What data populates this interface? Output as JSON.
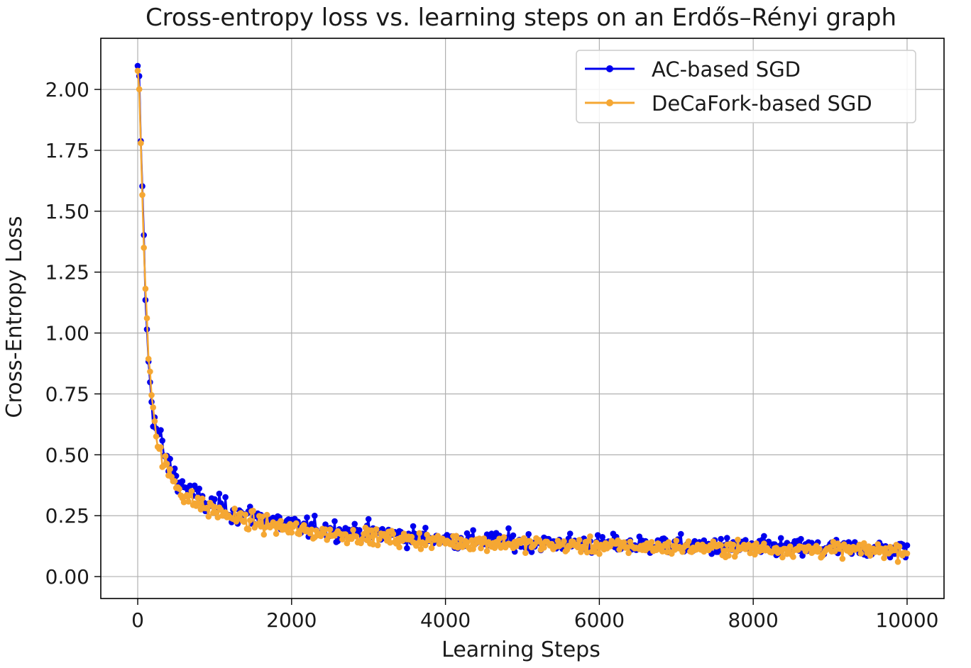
{
  "chart_data": {
    "type": "line",
    "title": "Cross-entropy loss vs. learning steps on an Erdős–Rényi graph",
    "xlabel": "Learning Steps",
    "ylabel": "Cross-Entropy Loss",
    "xlim": [
      -480,
      10480
    ],
    "ylim": [
      -0.09,
      2.21
    ],
    "xticks": [
      0,
      2000,
      4000,
      6000,
      8000,
      10000
    ],
    "xtick_labels": [
      "0",
      "2000",
      "4000",
      "6000",
      "8000",
      "10000"
    ],
    "yticks": [
      0.0,
      0.25,
      0.5,
      0.75,
      1.0,
      1.25,
      1.5,
      1.75,
      2.0
    ],
    "ytick_labels": [
      "0.00",
      "0.25",
      "0.50",
      "0.75",
      "1.00",
      "1.25",
      "1.50",
      "1.75",
      "2.00"
    ],
    "grid": true,
    "legend_position": "top-right",
    "markers": "dots",
    "sampling_step": 20,
    "series": [
      {
        "name": "AC-based SGD",
        "color": "#0000ee",
        "x": [
          0,
          20,
          40,
          60,
          80,
          100,
          120,
          140,
          160,
          180,
          200,
          250,
          300,
          350,
          400,
          450,
          500,
          600,
          700,
          800,
          900,
          1000,
          1100,
          1200,
          1300,
          1400,
          1500,
          1600,
          1800,
          2000,
          2200,
          2400,
          2600,
          2800,
          3000,
          3200,
          3400,
          3600,
          3800,
          4000,
          4200,
          4400,
          4600,
          4800,
          5000,
          5200,
          5400,
          5600,
          5800,
          6000,
          6200,
          6400,
          6600,
          6800,
          7000,
          7200,
          7400,
          7600,
          7800,
          8000,
          8200,
          8400,
          8600,
          8800,
          9000,
          9200,
          9400,
          9600,
          9800,
          10000
        ],
        "values": [
          2.09,
          2.05,
          1.79,
          1.6,
          1.4,
          1.14,
          1.01,
          0.88,
          0.8,
          0.72,
          0.67,
          0.6,
          0.56,
          0.5,
          0.45,
          0.43,
          0.41,
          0.37,
          0.34,
          0.32,
          0.3,
          0.29,
          0.28,
          0.27,
          0.26,
          0.25,
          0.245,
          0.24,
          0.225,
          0.21,
          0.2,
          0.195,
          0.19,
          0.185,
          0.18,
          0.175,
          0.17,
          0.165,
          0.16,
          0.155,
          0.152,
          0.15,
          0.148,
          0.145,
          0.143,
          0.14,
          0.138,
          0.136,
          0.135,
          0.133,
          0.132,
          0.13,
          0.129,
          0.128,
          0.127,
          0.126,
          0.125,
          0.124,
          0.123,
          0.122,
          0.121,
          0.12,
          0.119,
          0.118,
          0.117,
          0.116,
          0.115,
          0.115,
          0.114,
          0.114
        ],
        "noise": 0.055
      },
      {
        "name": "DeCaFork-based SGD",
        "color": "#f5a733",
        "x": [
          0,
          20,
          40,
          60,
          80,
          100,
          120,
          140,
          160,
          180,
          200,
          250,
          300,
          350,
          400,
          450,
          500,
          600,
          700,
          800,
          900,
          1000,
          1100,
          1200,
          1300,
          1400,
          1500,
          1600,
          1800,
          2000,
          2200,
          2400,
          2600,
          2800,
          3000,
          3200,
          3400,
          3600,
          3800,
          4000,
          4200,
          4400,
          4600,
          4800,
          5000,
          5200,
          5400,
          5600,
          5800,
          6000,
          6200,
          6400,
          6600,
          6800,
          7000,
          7200,
          7400,
          7600,
          7800,
          8000,
          8200,
          8400,
          8600,
          8800,
          9000,
          9200,
          9400,
          9600,
          9800,
          10000
        ],
        "values": [
          2.08,
          2.0,
          1.78,
          1.56,
          1.35,
          1.18,
          1.07,
          0.89,
          0.85,
          0.75,
          0.72,
          0.55,
          0.5,
          0.46,
          0.43,
          0.4,
          0.38,
          0.34,
          0.31,
          0.3,
          0.28,
          0.27,
          0.26,
          0.25,
          0.24,
          0.23,
          0.225,
          0.22,
          0.205,
          0.195,
          0.185,
          0.18,
          0.175,
          0.17,
          0.165,
          0.16,
          0.155,
          0.15,
          0.147,
          0.144,
          0.142,
          0.14,
          0.138,
          0.136,
          0.134,
          0.132,
          0.13,
          0.128,
          0.126,
          0.125,
          0.124,
          0.123,
          0.122,
          0.121,
          0.12,
          0.119,
          0.118,
          0.117,
          0.116,
          0.115,
          0.114,
          0.113,
          0.112,
          0.111,
          0.11,
          0.11,
          0.109,
          0.109,
          0.108,
          0.108
        ],
        "noise": 0.045
      }
    ]
  }
}
